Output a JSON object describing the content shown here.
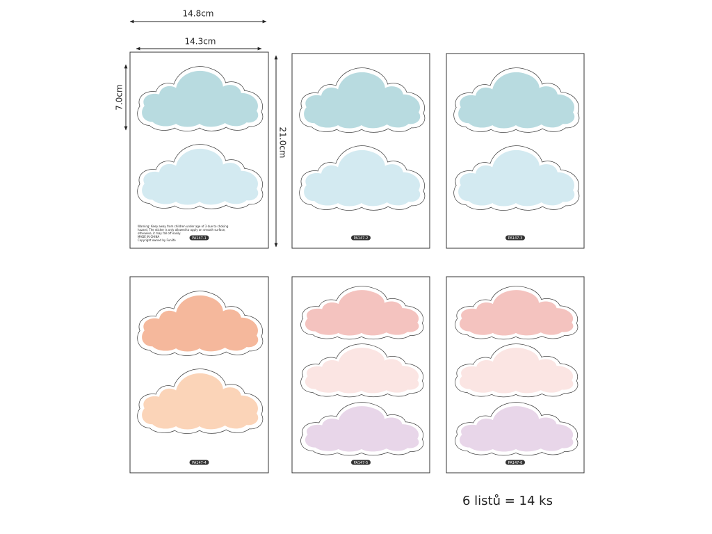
{
  "dimensions": {
    "outer_width": "14.8cm",
    "inner_width": "14.3cm",
    "cloud_height": "7.0cm",
    "sheet_height": "21.0cm"
  },
  "warning": [
    "Warning: Keep away from children under age of 3 due to choking",
    "hazard. The sticker is only allowed to apply on smooth surface,",
    "otherwise, it may fall off easily.",
    "MADE IN CHINA",
    "Copyright owned by Funlife"
  ],
  "sheets": [
    {
      "label": "PA147-1"
    },
    {
      "label": "PA147-2"
    },
    {
      "label": "PA147-3"
    },
    {
      "label": "PA147-4"
    },
    {
      "label": "PA147-5"
    },
    {
      "label": "PA147-6"
    }
  ],
  "summary": "6 listů = 14 ks"
}
